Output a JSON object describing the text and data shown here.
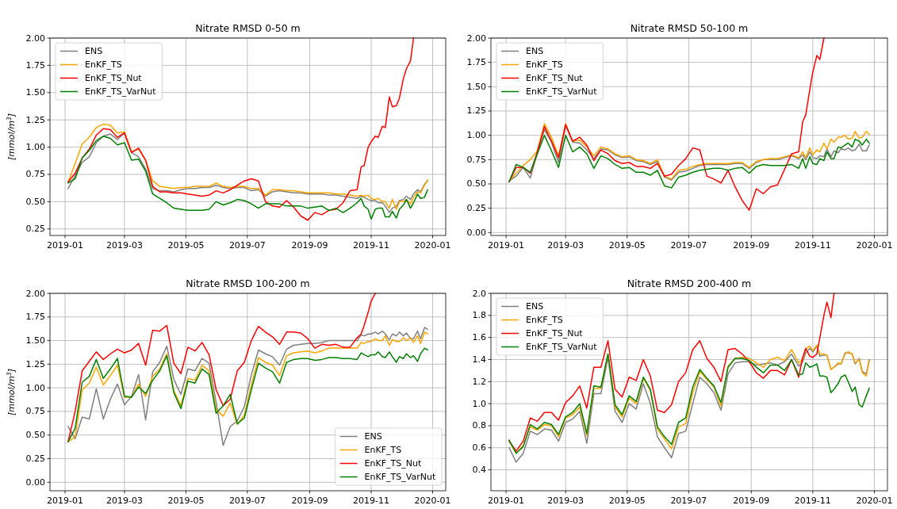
{
  "chart_data": [
    {
      "type": "line",
      "title": "Nitrate RMSD 0-50 m",
      "ylabel": "[mmol/m$^{3}$]",
      "grid": true,
      "legend": "top left",
      "x": [
        "2019-01-04",
        "2019-01-11",
        "2019-01-18",
        "2019-01-25",
        "2019-02-01",
        "2019-02-08",
        "2019-02-15",
        "2019-02-22",
        "2019-03-01",
        "2019-03-08",
        "2019-03-15",
        "2019-03-22",
        "2019-03-29",
        "2019-04-05",
        "2019-04-12",
        "2019-04-19",
        "2019-04-26",
        "2019-05-03",
        "2019-05-10",
        "2019-05-17",
        "2019-05-24",
        "2019-05-31",
        "2019-06-07",
        "2019-06-14",
        "2019-06-21",
        "2019-06-28",
        "2019-07-05",
        "2019-07-12",
        "2019-07-19",
        "2019-07-26",
        "2019-08-02",
        "2019-08-09",
        "2019-08-16",
        "2019-08-23",
        "2019-08-30",
        "2019-09-06",
        "2019-09-13",
        "2019-09-20",
        "2019-09-27",
        "2019-10-04",
        "2019-10-11",
        "2019-10-18",
        "2019-10-22",
        "2019-10-25",
        "2019-10-29",
        "2019-11-01",
        "2019-11-05",
        "2019-11-08",
        "2019-11-12",
        "2019-11-15",
        "2019-11-19",
        "2019-11-22",
        "2019-11-26",
        "2019-11-29",
        "2019-12-03",
        "2019-12-06",
        "2019-12-10",
        "2019-12-13",
        "2019-12-17",
        "2019-12-20",
        "2019-12-24",
        "2019-12-27"
      ],
      "xlim": [
        "2018-12-17",
        "2020-01-14"
      ],
      "xticks": [
        "2019-01",
        "2019-03",
        "2019-05",
        "2019-07",
        "2019-09",
        "2019-11",
        "2020-01"
      ],
      "ylim": [
        0.19,
        2
      ],
      "yticks": [
        0.25,
        {
          "value": 0.5,
          "label": "0.50"
        },
        0.75,
        {
          "value": 1,
          "label": "1.00"
        },
        1.25,
        {
          "value": 1.5,
          "label": "1.50"
        },
        1.75,
        {
          "value": 2,
          "label": "2.00"
        }
      ],
      "series": [
        {
          "name": "ENS",
          "color": "#808080",
          "values": [
            0.62,
            0.74,
            0.86,
            0.91,
            1.04,
            1.1,
            1.12,
            1.07,
            1.13,
            0.95,
            0.91,
            0.8,
            0.62,
            0.6,
            0.6,
            0.59,
            0.61,
            0.62,
            0.62,
            0.63,
            0.63,
            0.65,
            0.63,
            0.62,
            0.63,
            0.63,
            0.6,
            0.61,
            0.55,
            0.59,
            0.6,
            0.59,
            0.58,
            0.58,
            0.57,
            0.57,
            0.57,
            0.56,
            0.56,
            0.55,
            0.54,
            0.53,
            0.55,
            0.54,
            0.52,
            0.51,
            0.51,
            0.49,
            0.49,
            0.46,
            0.4,
            0.44,
            0.46,
            0.51,
            0.52,
            0.55,
            0.52,
            0.57,
            0.61,
            0.59,
            0.66,
            0.69
          ]
        },
        {
          "name": "EnKF_TS",
          "color": "#ffa500",
          "values": [
            0.68,
            0.85,
            1.03,
            1.09,
            1.18,
            1.21,
            1.2,
            1.13,
            1.14,
            0.96,
            0.98,
            0.88,
            0.69,
            0.64,
            0.63,
            0.62,
            0.63,
            0.63,
            0.64,
            0.64,
            0.64,
            0.67,
            0.64,
            0.63,
            0.64,
            0.64,
            0.62,
            0.62,
            0.56,
            0.61,
            0.61,
            0.6,
            0.6,
            0.59,
            0.58,
            0.58,
            0.58,
            0.58,
            0.57,
            0.57,
            0.56,
            0.55,
            0.56,
            0.55,
            0.56,
            0.53,
            0.52,
            0.53,
            0.5,
            0.5,
            0.44,
            0.52,
            0.43,
            0.5,
            0.5,
            0.52,
            0.48,
            0.54,
            0.59,
            0.58,
            0.65,
            0.7
          ]
        },
        {
          "name": "EnKF_TS_Nut",
          "color": "#ff0000",
          "values": [
            0.68,
            0.76,
            0.9,
            0.98,
            1.11,
            1.17,
            1.16,
            1.09,
            1.13,
            0.95,
            0.99,
            0.88,
            0.64,
            0.59,
            0.59,
            0.58,
            0.58,
            0.57,
            0.56,
            0.55,
            0.56,
            0.6,
            0.58,
            0.61,
            0.65,
            0.69,
            0.71,
            0.69,
            0.5,
            0.46,
            0.45,
            0.51,
            0.45,
            0.37,
            0.33,
            0.4,
            0.38,
            0.42,
            0.43,
            0.49,
            0.6,
            0.61,
            0.82,
            0.83,
            1.0,
            1.05,
            1.1,
            1.09,
            1.19,
            1.18,
            1.46,
            1.37,
            1.38,
            1.45,
            1.63,
            1.72,
            1.79,
            2.0,
            null,
            null,
            null,
            null
          ]
        },
        {
          "name": "EnKF_TS_VarNut",
          "color": "#008000",
          "values": [
            0.67,
            0.71,
            0.9,
            0.97,
            1.06,
            1.1,
            1.08,
            1.02,
            1.04,
            0.88,
            0.89,
            0.78,
            0.57,
            0.53,
            0.49,
            0.44,
            0.43,
            0.42,
            0.42,
            0.42,
            0.43,
            0.5,
            0.47,
            0.49,
            0.52,
            0.51,
            0.48,
            0.44,
            0.48,
            0.48,
            0.48,
            0.46,
            0.46,
            0.46,
            0.44,
            0.45,
            0.46,
            0.42,
            0.44,
            0.4,
            0.44,
            0.49,
            0.53,
            0.46,
            0.43,
            0.34,
            0.43,
            0.44,
            0.44,
            0.36,
            0.36,
            0.41,
            0.35,
            0.43,
            0.47,
            0.52,
            0.44,
            0.49,
            0.57,
            0.53,
            0.54,
            0.61
          ]
        }
      ]
    },
    {
      "type": "line",
      "title": "Nitrate RMSD 50-100 m",
      "grid": true,
      "legend": "top left",
      "x": [
        "2019-01-04",
        "2019-01-11",
        "2019-01-18",
        "2019-01-25",
        "2019-02-01",
        "2019-02-08",
        "2019-02-15",
        "2019-02-22",
        "2019-03-01",
        "2019-03-08",
        "2019-03-15",
        "2019-03-22",
        "2019-03-29",
        "2019-04-05",
        "2019-04-12",
        "2019-04-19",
        "2019-04-26",
        "2019-05-03",
        "2019-05-10",
        "2019-05-17",
        "2019-05-24",
        "2019-05-31",
        "2019-06-07",
        "2019-06-14",
        "2019-06-21",
        "2019-06-28",
        "2019-07-05",
        "2019-07-12",
        "2019-07-19",
        "2019-07-26",
        "2019-08-02",
        "2019-08-09",
        "2019-08-16",
        "2019-08-23",
        "2019-08-30",
        "2019-09-06",
        "2019-09-13",
        "2019-09-20",
        "2019-09-27",
        "2019-10-04",
        "2019-10-11",
        "2019-10-18",
        "2019-10-22",
        "2019-10-25",
        "2019-10-29",
        "2019-11-01",
        "2019-11-05",
        "2019-11-08",
        "2019-11-12",
        "2019-11-15",
        "2019-11-19",
        "2019-11-22",
        "2019-11-26",
        "2019-11-29",
        "2019-12-03",
        "2019-12-06",
        "2019-12-10",
        "2019-12-13",
        "2019-12-17",
        "2019-12-20",
        "2019-12-24",
        "2019-12-27"
      ],
      "xlim": [
        "2018-12-17",
        "2020-01-14"
      ],
      "xticks": [
        "2019-01",
        "2019-03",
        "2019-05",
        "2019-07",
        "2019-09",
        "2019-11",
        "2020-01"
      ],
      "ylim": [
        -0.03,
        2
      ],
      "yticks": [
        {
          "value": 0,
          "label": "0.00"
        },
        0.25,
        {
          "value": 0.5,
          "label": "0.50"
        },
        0.75,
        {
          "value": 1,
          "label": "1.00"
        },
        1.25,
        {
          "value": 1.5,
          "label": "1.50"
        },
        1.75,
        {
          "value": 2,
          "label": "2.00"
        }
      ],
      "series": [
        {
          "name": "ENS",
          "color": "#808080",
          "values": [
            0.53,
            0.58,
            0.67,
            0.56,
            0.82,
            1.06,
            0.93,
            0.72,
            1.1,
            0.93,
            0.92,
            0.85,
            0.76,
            0.86,
            0.85,
            0.8,
            0.77,
            0.78,
            0.74,
            0.73,
            0.7,
            0.73,
            0.57,
            0.54,
            0.62,
            0.63,
            0.66,
            0.69,
            0.7,
            0.7,
            0.7,
            0.7,
            0.71,
            0.71,
            0.66,
            0.72,
            0.75,
            0.75,
            0.75,
            0.77,
            0.79,
            0.76,
            0.8,
            0.75,
            0.83,
            0.77,
            0.76,
            0.79,
            0.78,
            0.86,
            0.78,
            0.84,
            0.82,
            0.86,
            0.85,
            0.87,
            0.84,
            0.85,
            0.91,
            0.84,
            0.84,
            0.9
          ]
        },
        {
          "name": "EnKF_TS",
          "color": "#ffa500",
          "values": [
            0.53,
            0.61,
            0.69,
            0.75,
            0.84,
            1.12,
            0.98,
            0.79,
            1.12,
            0.94,
            0.95,
            0.88,
            0.79,
            0.88,
            0.86,
            0.81,
            0.78,
            0.79,
            0.75,
            0.74,
            0.71,
            0.75,
            0.58,
            0.55,
            0.64,
            0.65,
            0.68,
            0.7,
            0.71,
            0.71,
            0.71,
            0.71,
            0.72,
            0.72,
            0.67,
            0.73,
            0.75,
            0.76,
            0.76,
            0.78,
            0.8,
            0.77,
            0.83,
            0.77,
            0.87,
            0.8,
            0.85,
            0.83,
            0.92,
            0.86,
            0.96,
            0.93,
            0.98,
            0.98,
            1.0,
            0.96,
            0.97,
            1.04,
            0.97,
            0.98,
            1.04,
            1.01
          ]
        },
        {
          "name": "EnKF_TS_Nut",
          "color": "#ff0000",
          "values": [
            0.52,
            0.67,
            0.67,
            0.61,
            0.83,
            1.09,
            0.94,
            0.77,
            1.11,
            0.94,
            0.98,
            0.9,
            0.74,
            0.85,
            0.81,
            0.74,
            0.71,
            0.72,
            0.68,
            0.68,
            0.66,
            0.71,
            0.58,
            0.6,
            0.69,
            0.76,
            0.87,
            0.85,
            0.58,
            0.55,
            0.51,
            0.64,
            0.47,
            0.33,
            0.23,
            0.45,
            0.4,
            0.47,
            0.49,
            0.65,
            0.81,
            0.83,
            1.14,
            1.21,
            1.47,
            1.65,
            1.82,
            1.78,
            2.0,
            null,
            null,
            null,
            null,
            null,
            null,
            null,
            null,
            null,
            null,
            null,
            null,
            null
          ]
        },
        {
          "name": "EnKF_TS_VarNut",
          "color": "#008000",
          "values": [
            0.52,
            0.7,
            0.67,
            0.62,
            0.81,
            1.0,
            0.84,
            0.67,
            1.0,
            0.83,
            0.88,
            0.81,
            0.66,
            0.79,
            0.76,
            0.7,
            0.66,
            0.67,
            0.62,
            0.62,
            0.59,
            0.64,
            0.48,
            0.46,
            0.57,
            0.59,
            0.62,
            0.64,
            0.65,
            0.66,
            0.66,
            0.64,
            0.66,
            0.67,
            0.61,
            0.68,
            0.7,
            0.69,
            0.69,
            0.69,
            0.7,
            0.66,
            0.76,
            0.66,
            0.78,
            0.71,
            0.7,
            0.76,
            0.74,
            0.83,
            0.76,
            0.76,
            0.88,
            0.87,
            0.9,
            0.92,
            0.88,
            0.96,
            0.94,
            0.9,
            0.96,
            0.92
          ]
        }
      ]
    },
    {
      "type": "line",
      "title": "Nitrate RMSD 100-200 m",
      "ylabel": "[mmol/m$^{3}$]",
      "grid": true,
      "legend": "bottom right",
      "x": [
        "2019-01-04",
        "2019-01-11",
        "2019-01-18",
        "2019-01-25",
        "2019-02-01",
        "2019-02-08",
        "2019-02-15",
        "2019-02-22",
        "2019-03-01",
        "2019-03-08",
        "2019-03-15",
        "2019-03-22",
        "2019-03-29",
        "2019-04-05",
        "2019-04-12",
        "2019-04-19",
        "2019-04-26",
        "2019-05-03",
        "2019-05-10",
        "2019-05-17",
        "2019-05-24",
        "2019-05-31",
        "2019-06-07",
        "2019-06-14",
        "2019-06-21",
        "2019-06-28",
        "2019-07-05",
        "2019-07-12",
        "2019-07-19",
        "2019-07-26",
        "2019-08-02",
        "2019-08-09",
        "2019-08-16",
        "2019-08-23",
        "2019-08-30",
        "2019-09-06",
        "2019-09-13",
        "2019-09-20",
        "2019-09-27",
        "2019-10-04",
        "2019-10-11",
        "2019-10-18",
        "2019-10-22",
        "2019-10-25",
        "2019-10-29",
        "2019-11-01",
        "2019-11-05",
        "2019-11-08",
        "2019-11-12",
        "2019-11-15",
        "2019-11-19",
        "2019-11-22",
        "2019-11-26",
        "2019-11-29",
        "2019-12-03",
        "2019-12-06",
        "2019-12-10",
        "2019-12-13",
        "2019-12-17",
        "2019-12-20",
        "2019-12-24",
        "2019-12-27"
      ],
      "xlim": [
        "2018-12-17",
        "2020-01-14"
      ],
      "xticks": [
        "2019-01",
        "2019-03",
        "2019-05",
        "2019-07",
        "2019-09",
        "2019-11",
        "2020-01"
      ],
      "ylim": [
        -0.09,
        2
      ],
      "yticks": [
        {
          "value": 0,
          "label": "0.00"
        },
        0.25,
        {
          "value": 0.5,
          "label": "0.50"
        },
        0.75,
        {
          "value": 1,
          "label": "1.00"
        },
        1.25,
        {
          "value": 1.5,
          "label": "1.50"
        },
        1.75,
        {
          "value": 2,
          "label": "2.00"
        }
      ],
      "series": [
        {
          "name": "ENS",
          "color": "#808080",
          "values": [
            0.59,
            0.46,
            0.69,
            0.67,
            0.99,
            0.67,
            0.88,
            1.04,
            0.82,
            0.91,
            1.14,
            0.66,
            1.17,
            1.27,
            1.44,
            1.09,
            0.93,
            1.2,
            1.18,
            1.31,
            1.26,
            0.85,
            0.39,
            0.59,
            0.65,
            0.8,
            1.14,
            1.4,
            1.36,
            1.33,
            1.24,
            1.41,
            1.45,
            1.46,
            1.47,
            1.47,
            1.48,
            1.5,
            1.5,
            1.5,
            1.5,
            1.5,
            1.56,
            1.55,
            1.57,
            1.57,
            1.59,
            1.57,
            1.6,
            1.57,
            1.51,
            1.57,
            1.55,
            1.59,
            1.55,
            1.58,
            1.52,
            1.52,
            1.6,
            1.52,
            1.64,
            1.62
          ]
        },
        {
          "name": "EnKF_TS",
          "color": "#ffa500",
          "values": [
            0.43,
            0.48,
            0.98,
            1.05,
            1.22,
            1.03,
            1.13,
            1.24,
            0.9,
            0.9,
            1.04,
            0.91,
            1.12,
            1.2,
            1.36,
            0.97,
            0.81,
            1.1,
            1.08,
            1.24,
            1.18,
            0.77,
            0.7,
            0.84,
            0.61,
            0.71,
            1.03,
            1.32,
            1.27,
            1.24,
            1.13,
            1.34,
            1.37,
            1.38,
            1.39,
            1.37,
            1.39,
            1.42,
            1.42,
            1.42,
            1.42,
            1.42,
            1.48,
            1.47,
            1.49,
            1.49,
            1.52,
            1.5,
            1.5,
            1.55,
            1.45,
            1.51,
            1.49,
            1.49,
            1.53,
            1.5,
            1.53,
            1.48,
            1.55,
            1.47,
            1.59,
            1.57
          ]
        },
        {
          "name": "EnKF_TS_Nut",
          "color": "#ff0000",
          "values": [
            0.43,
            0.75,
            1.18,
            1.28,
            1.38,
            1.3,
            1.36,
            1.41,
            1.37,
            1.4,
            1.47,
            1.24,
            1.61,
            1.6,
            1.66,
            1.26,
            1.15,
            1.43,
            1.39,
            1.48,
            1.35,
            0.98,
            0.81,
            0.88,
            1.18,
            1.27,
            1.5,
            1.65,
            1.59,
            1.54,
            1.46,
            1.59,
            1.59,
            1.58,
            1.52,
            1.42,
            1.46,
            1.45,
            1.46,
            1.43,
            1.43,
            1.53,
            1.57,
            1.66,
            1.8,
            1.92,
            2.0,
            null,
            null,
            null,
            null,
            null,
            null,
            null,
            null,
            null,
            null,
            null,
            null,
            null,
            null,
            null
          ]
        },
        {
          "name": "EnKF_TS_VarNut",
          "color": "#008000",
          "values": [
            0.43,
            0.57,
            1.06,
            1.12,
            1.3,
            1.1,
            1.2,
            1.31,
            0.91,
            0.9,
            1.01,
            0.94,
            1.08,
            1.18,
            1.34,
            0.95,
            0.78,
            1.07,
            1.05,
            1.2,
            1.14,
            0.73,
            0.81,
            0.93,
            0.62,
            0.68,
            0.98,
            1.26,
            1.21,
            1.17,
            1.05,
            1.27,
            1.3,
            1.31,
            1.31,
            1.29,
            1.3,
            1.32,
            1.32,
            1.31,
            1.31,
            1.3,
            1.37,
            1.35,
            1.33,
            1.35,
            1.35,
            1.38,
            1.33,
            1.32,
            1.38,
            1.33,
            1.27,
            1.33,
            1.31,
            1.36,
            1.32,
            1.34,
            1.28,
            1.36,
            1.42,
            1.4
          ]
        }
      ]
    },
    {
      "type": "line",
      "title": "Nitrate RMSD 200-400 m",
      "grid": true,
      "legend": "top left",
      "x": [
        "2019-01-04",
        "2019-01-11",
        "2019-01-18",
        "2019-01-25",
        "2019-02-01",
        "2019-02-08",
        "2019-02-15",
        "2019-02-22",
        "2019-03-01",
        "2019-03-08",
        "2019-03-15",
        "2019-03-22",
        "2019-03-29",
        "2019-04-05",
        "2019-04-12",
        "2019-04-19",
        "2019-04-26",
        "2019-05-03",
        "2019-05-10",
        "2019-05-17",
        "2019-05-24",
        "2019-05-31",
        "2019-06-07",
        "2019-06-14",
        "2019-06-21",
        "2019-06-28",
        "2019-07-05",
        "2019-07-12",
        "2019-07-19",
        "2019-07-26",
        "2019-08-02",
        "2019-08-09",
        "2019-08-16",
        "2019-08-23",
        "2019-08-30",
        "2019-09-06",
        "2019-09-13",
        "2019-09-20",
        "2019-09-27",
        "2019-10-04",
        "2019-10-11",
        "2019-10-18",
        "2019-10-22",
        "2019-10-25",
        "2019-10-29",
        "2019-11-01",
        "2019-11-05",
        "2019-11-08",
        "2019-11-12",
        "2019-11-15",
        "2019-11-19",
        "2019-11-22",
        "2019-11-26",
        "2019-11-29",
        "2019-12-03",
        "2019-12-06",
        "2019-12-10",
        "2019-12-13",
        "2019-12-17",
        "2019-12-20",
        "2019-12-24",
        "2019-12-27"
      ],
      "xlim": [
        "2018-12-17",
        "2020-01-14"
      ],
      "xticks": [
        "2019-01",
        "2019-03",
        "2019-05",
        "2019-07",
        "2019-09",
        "2019-11",
        "2020-01"
      ],
      "ylim": [
        0.21,
        2
      ],
      "yticks": [
        0.4,
        0.6,
        0.8,
        {
          "value": 1,
          "label": "1.0"
        },
        1.2,
        1.4,
        1.6,
        1.8,
        {
          "value": 2,
          "label": "2.0"
        }
      ],
      "series": [
        {
          "name": "ENS",
          "color": "#808080",
          "values": [
            0.6,
            0.47,
            0.55,
            0.75,
            0.72,
            0.77,
            0.76,
            0.66,
            0.83,
            0.86,
            0.93,
            0.64,
            1.09,
            1.09,
            1.42,
            0.93,
            0.83,
            1.0,
            0.95,
            1.18,
            1.0,
            0.7,
            0.6,
            0.51,
            0.73,
            0.75,
            1.0,
            1.24,
            1.18,
            1.1,
            0.94,
            1.27,
            1.37,
            1.38,
            1.38,
            1.35,
            1.36,
            1.37,
            1.35,
            1.38,
            1.45,
            1.34,
            1.38,
            1.46,
            1.5,
            1.47,
            1.52,
            1.43,
            1.44,
            1.44,
            1.31,
            1.33,
            1.36,
            1.36,
            1.46,
            1.46,
            1.45,
            1.36,
            1.41,
            1.29,
            1.27,
            1.4
          ]
        },
        {
          "name": "EnKF_TS",
          "color": "#ffa500",
          "values": [
            0.66,
            0.55,
            0.62,
            0.79,
            0.76,
            0.81,
            0.8,
            0.7,
            0.87,
            0.9,
            0.97,
            0.71,
            1.14,
            1.14,
            1.45,
            0.97,
            0.88,
            1.05,
            1.0,
            1.23,
            1.12,
            0.77,
            0.68,
            0.59,
            0.79,
            0.82,
            1.1,
            1.29,
            1.22,
            1.15,
            0.98,
            1.34,
            1.41,
            1.42,
            1.41,
            1.37,
            1.33,
            1.4,
            1.42,
            1.39,
            1.49,
            1.37,
            1.4,
            1.5,
            1.52,
            1.48,
            1.53,
            1.45,
            1.45,
            1.44,
            1.31,
            1.33,
            1.37,
            1.36,
            1.45,
            1.47,
            1.45,
            1.37,
            1.4,
            1.28,
            1.25,
            1.39
          ]
        },
        {
          "name": "EnKF_TS_Nut",
          "color": "#ff0000",
          "values": [
            0.66,
            0.57,
            0.66,
            0.87,
            0.84,
            0.92,
            0.92,
            0.85,
            1.01,
            1.07,
            1.16,
            0.96,
            1.33,
            1.33,
            1.57,
            1.13,
            1.06,
            1.24,
            1.21,
            1.4,
            1.25,
            0.94,
            0.92,
            0.99,
            1.2,
            1.28,
            1.49,
            1.57,
            1.41,
            1.33,
            1.2,
            1.49,
            1.5,
            1.45,
            1.38,
            1.28,
            1.23,
            1.3,
            1.3,
            1.26,
            1.4,
            1.24,
            1.42,
            1.5,
            1.43,
            1.42,
            1.45,
            1.6,
            1.8,
            1.92,
            1.78,
            2.0,
            null,
            null,
            null,
            null,
            null,
            null,
            null,
            null,
            null,
            null
          ]
        },
        {
          "name": "EnKF_TS_VarNut",
          "color": "#008000",
          "values": [
            0.67,
            0.55,
            0.61,
            0.81,
            0.77,
            0.83,
            0.81,
            0.72,
            0.88,
            0.92,
            1.0,
            0.73,
            1.16,
            1.15,
            1.45,
            0.99,
            0.9,
            1.07,
            1.02,
            1.24,
            1.13,
            0.79,
            0.7,
            0.63,
            0.83,
            0.87,
            1.15,
            1.31,
            1.23,
            1.16,
            1.01,
            1.33,
            1.41,
            1.41,
            1.39,
            1.33,
            1.28,
            1.35,
            1.35,
            1.3,
            1.4,
            1.26,
            1.27,
            1.37,
            1.33,
            1.34,
            1.36,
            1.25,
            1.25,
            1.24,
            1.1,
            1.13,
            1.18,
            1.24,
            1.26,
            1.2,
            1.11,
            1.15,
            0.99,
            0.97,
            1.07,
            1.14
          ]
        }
      ]
    }
  ]
}
